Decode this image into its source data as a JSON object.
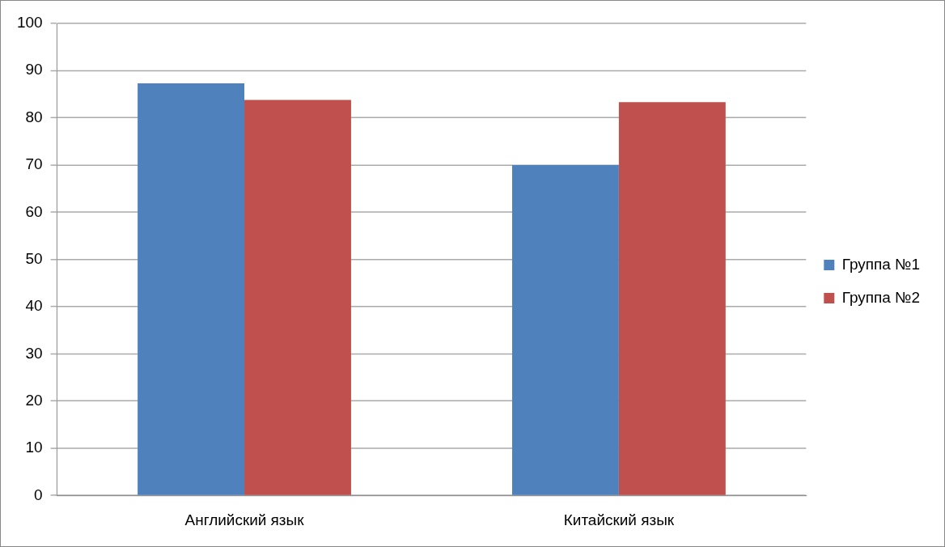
{
  "chart_data": {
    "type": "bar",
    "categories": [
      "Английский язык",
      "Китайский язык"
    ],
    "series": [
      {
        "name": "Группа №1",
        "color": "#4f81bd",
        "values": [
          87.3,
          70
        ]
      },
      {
        "name": "Группа №2",
        "color": "#c0504d",
        "values": [
          83.8,
          83.3
        ]
      }
    ],
    "ylim": [
      0,
      100
    ],
    "yticks": [
      0,
      10,
      20,
      30,
      40,
      50,
      60,
      70,
      80,
      90,
      100
    ],
    "grid": "y",
    "legend": "right"
  }
}
